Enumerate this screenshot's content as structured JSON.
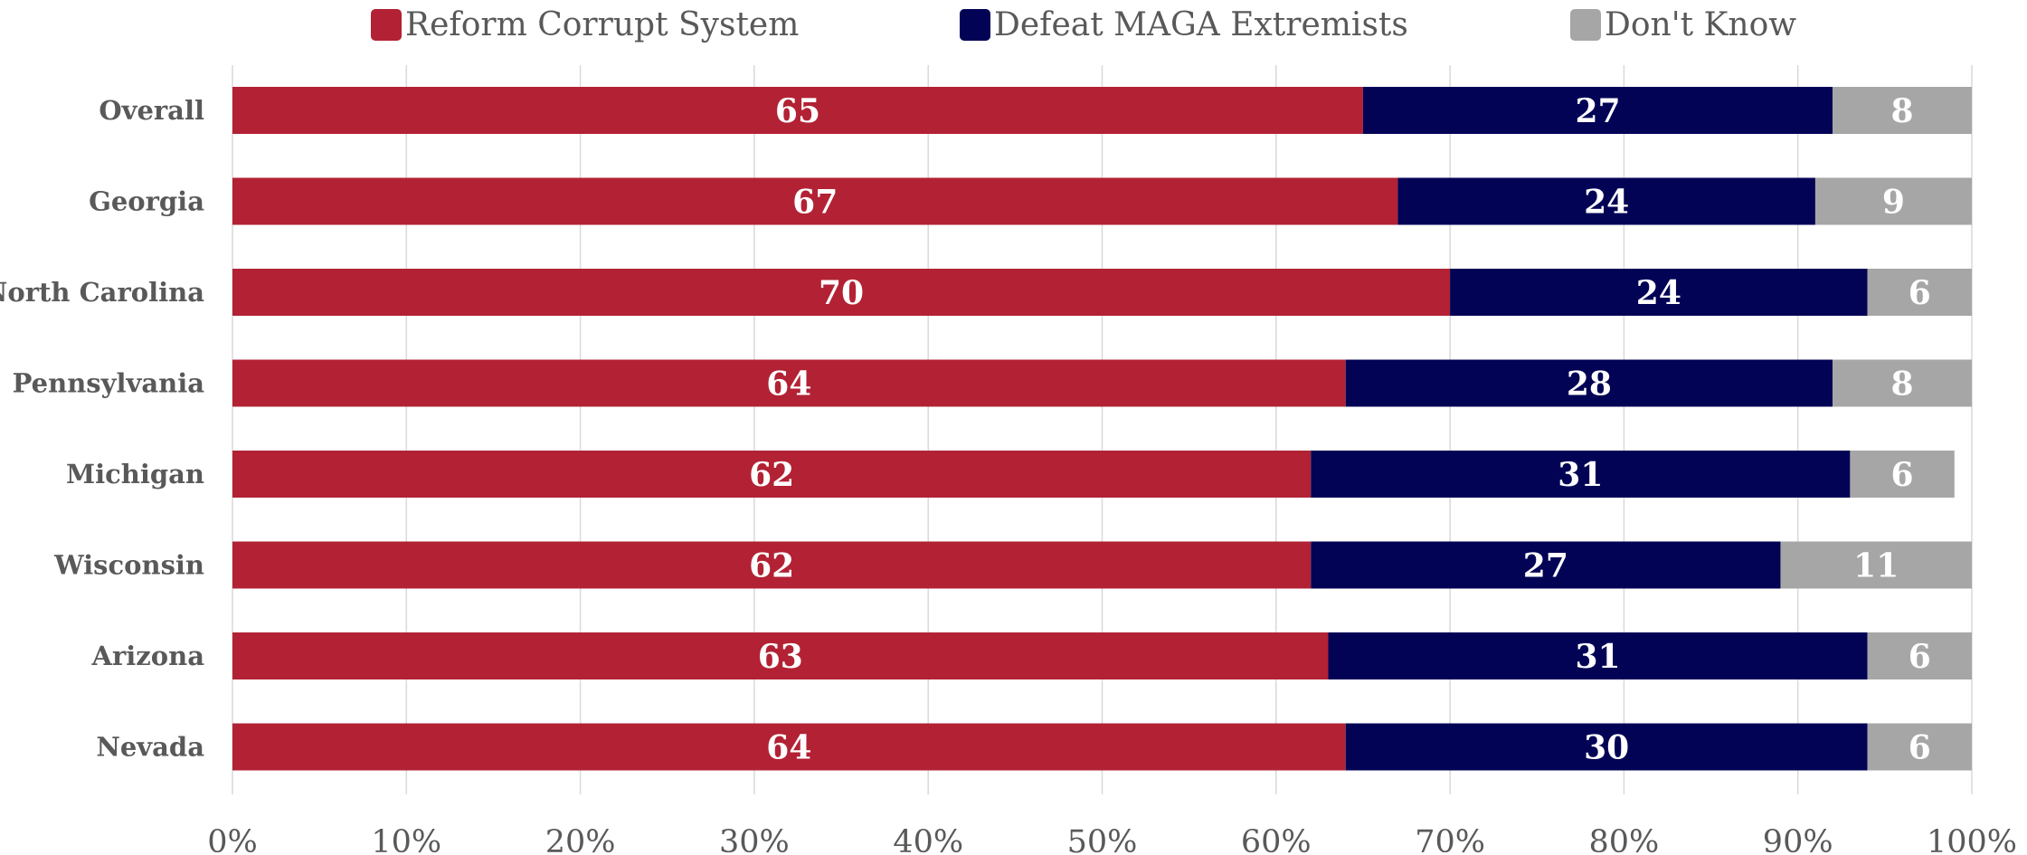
{
  "chart_data": {
    "type": "bar",
    "orientation": "horizontal",
    "stacked": true,
    "categories": [
      "Overall",
      "Georgia",
      "North Carolina",
      "Pennsylvania",
      "Michigan",
      "Wisconsin",
      "Arizona",
      "Nevada"
    ],
    "series": [
      {
        "name": "Reform Corrupt System",
        "color": "#b22234",
        "values": [
          65,
          67,
          70,
          64,
          62,
          62,
          63,
          64
        ]
      },
      {
        "name": "Defeat MAGA Extremists",
        "color": "#030356",
        "values": [
          27,
          24,
          24,
          28,
          31,
          27,
          31,
          30
        ]
      },
      {
        "name": "Don't Know",
        "color": "#a6a6a6",
        "values": [
          8,
          9,
          6,
          8,
          6,
          11,
          6,
          6
        ]
      }
    ],
    "x_ticks": [
      "0%",
      "10%",
      "20%",
      "30%",
      "40%",
      "50%",
      "60%",
      "70%",
      "80%",
      "90%",
      "100%"
    ],
    "xlim": [
      0,
      100
    ],
    "grid": true,
    "legend_position": "top",
    "data_labels": true
  }
}
